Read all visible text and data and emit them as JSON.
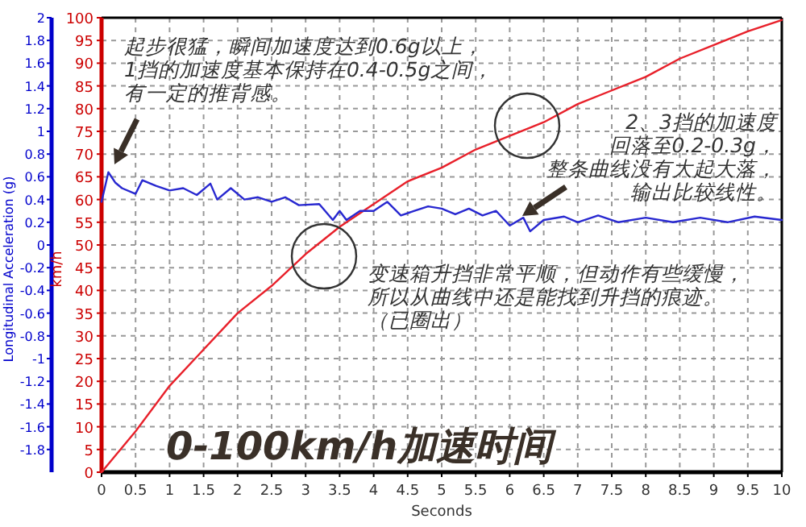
{
  "chart_data": {
    "type": "line",
    "title": "0-100km/h加速时间",
    "xlabel": "Seconds",
    "ylabel": "km/h",
    "y2label": "Longitudinal Acceleration (g)",
    "annotations": [
      "起步很猛，瞬间加速度达到0.6g以上，1挡的加速度基本保持在0.4-0.5g之间，有一定的推背感。",
      "2、3挡的加速度回落至0.2-0.3g，整条曲线没有大起大落，输出比较线性。",
      "变速箱升挡非常平顺，但动作有些缓慢，所以从曲线中还是能找到升挡的痕迹。（已圈出）"
    ],
    "series": [
      {
        "color": "#e8202a",
        "x": [
          0,
          0.5,
          1,
          1.5,
          2,
          2.5,
          3,
          3.5,
          4,
          4.5,
          5,
          5.5,
          6,
          6.5,
          7,
          7.5,
          8,
          8.5,
          9,
          9.5,
          10
        ],
        "values": [
          0,
          9,
          19,
          27,
          35,
          41,
          48,
          54,
          59,
          64,
          67,
          71,
          74,
          77,
          81,
          84,
          87,
          91,
          94,
          97,
          99.5
        ]
      },
      {
        "color": "#2828d0",
        "axis": "y2",
        "x": [
          0,
          0.1,
          0.2,
          0.3,
          0.5,
          0.6,
          0.8,
          1.0,
          1.2,
          1.4,
          1.6,
          1.7,
          1.9,
          2.1,
          2.3,
          2.5,
          2.7,
          2.9,
          3.2,
          3.4,
          3.5,
          3.6,
          3.8,
          4.0,
          4.2,
          4.4,
          4.6,
          4.8,
          5.0,
          5.2,
          5.4,
          5.6,
          5.8,
          6.0,
          6.2,
          6.3,
          6.5,
          6.8,
          7.0,
          7.3,
          7.6,
          8.0,
          8.4,
          8.8,
          9.2,
          9.6,
          10
        ],
        "values": [
          0.38,
          0.64,
          0.55,
          0.5,
          0.45,
          0.57,
          0.52,
          0.48,
          0.5,
          0.44,
          0.54,
          0.4,
          0.5,
          0.4,
          0.42,
          0.38,
          0.42,
          0.35,
          0.36,
          0.22,
          0.3,
          0.22,
          0.3,
          0.3,
          0.38,
          0.26,
          0.3,
          0.34,
          0.32,
          0.27,
          0.32,
          0.26,
          0.3,
          0.17,
          0.24,
          0.12,
          0.22,
          0.25,
          0.2,
          0.26,
          0.2,
          0.24,
          0.2,
          0.24,
          0.2,
          0.25,
          0.22
        ]
      }
    ],
    "xlim": [
      0,
      10
    ],
    "xticks": [
      0,
      0.5,
      1,
      1.5,
      2,
      2.5,
      3,
      3.5,
      4,
      4.5,
      5,
      5.5,
      6,
      6.5,
      7,
      7.5,
      8,
      8.5,
      9,
      9.5,
      10
    ],
    "ylim": [
      0,
      100
    ],
    "yticks": [
      0,
      5,
      10,
      15,
      20,
      25,
      30,
      35,
      40,
      45,
      50,
      55,
      60,
      65,
      70,
      75,
      80,
      85,
      90,
      95,
      100
    ],
    "y2lim": [
      -2,
      2
    ],
    "y2ticks": [
      2,
      1.8,
      1.6,
      1.4,
      1.2,
      1,
      0.8,
      0.6,
      0.4,
      0.2,
      0,
      -0.2,
      -0.4,
      -0.6,
      -0.8,
      -1,
      -1.2,
      -1.4,
      -1.6,
      -1.8
    ],
    "grid": true,
    "marker": "none",
    "line_style": "solid"
  }
}
